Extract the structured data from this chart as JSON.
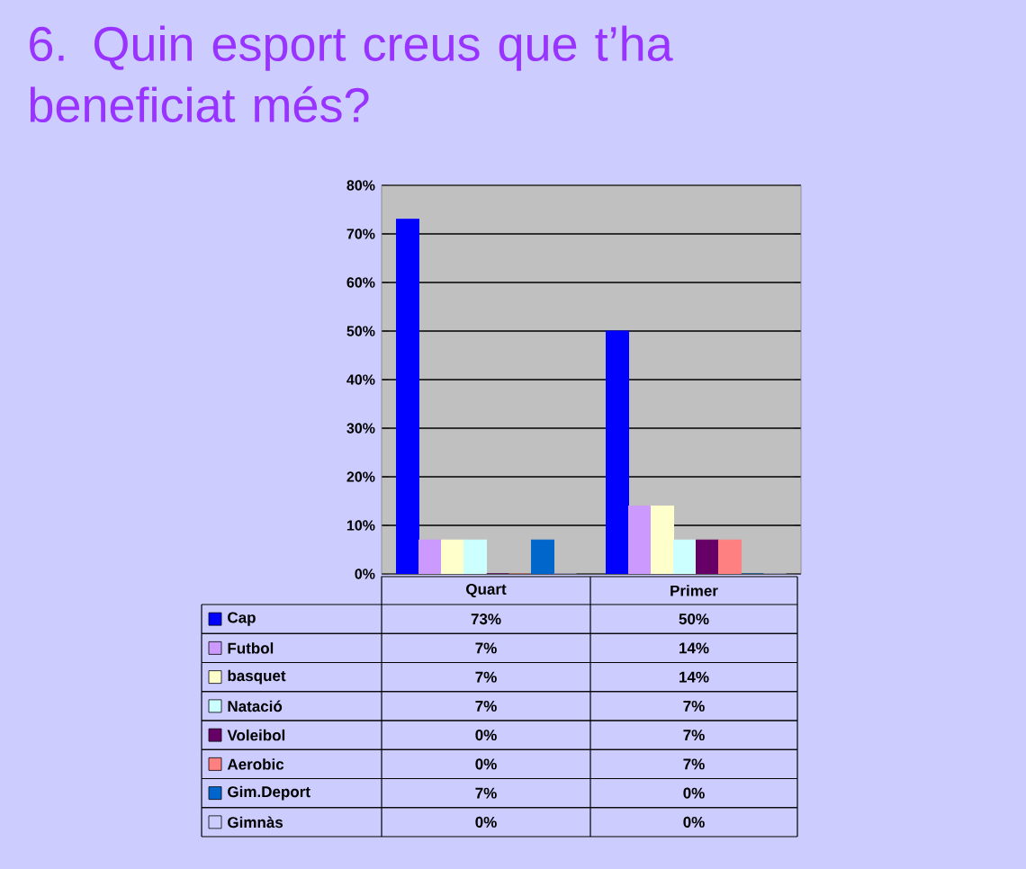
{
  "chart_data": {
    "type": "bar",
    "title": "6. Quin esport creus que t’ha beneficiat més?",
    "categories": [
      "Quart",
      "Primer"
    ],
    "series": [
      {
        "name": "Cap",
        "color": "#0000ff",
        "values": [
          73,
          50
        ],
        "value_labels": [
          "73%",
          "50%"
        ]
      },
      {
        "name": "Futbol",
        "color": "#cc99ff",
        "values": [
          7,
          14
        ],
        "value_labels": [
          "7%",
          "14%"
        ]
      },
      {
        "name": "basquet",
        "color": "#ffffcc",
        "values": [
          7,
          14
        ],
        "value_labels": [
          "7%",
          "14%"
        ]
      },
      {
        "name": "Natació",
        "color": "#ccffff",
        "values": [
          7,
          7
        ],
        "value_labels": [
          "7%",
          "7%"
        ]
      },
      {
        "name": "Voleibol",
        "color": "#660066",
        "values": [
          0,
          7
        ],
        "value_labels": [
          "0%",
          "7%"
        ]
      },
      {
        "name": "Aerobic",
        "color": "#ff8080",
        "values": [
          0,
          7
        ],
        "value_labels": [
          "0%",
          "7%"
        ]
      },
      {
        "name": "Gim.Deport",
        "color": "#0066cc",
        "values": [
          7,
          0
        ],
        "value_labels": [
          "7%",
          "0%"
        ]
      },
      {
        "name": "Gimnàs",
        "color": "#ccccff",
        "values": [
          0,
          0
        ],
        "value_labels": [
          "0%",
          "0%"
        ]
      }
    ],
    "ylim": [
      0,
      80
    ],
    "yticks": [
      {
        "value": 0,
        "label": "0%"
      },
      {
        "value": 10,
        "label": "10%"
      },
      {
        "value": 20,
        "label": "20%"
      },
      {
        "value": 30,
        "label": "30%"
      },
      {
        "value": 40,
        "label": "40%"
      },
      {
        "value": 50,
        "label": "50%"
      },
      {
        "value": 60,
        "label": "60%"
      },
      {
        "value": 70,
        "label": "70%"
      },
      {
        "value": 80,
        "label": "80%"
      }
    ],
    "grid": "y",
    "legend": "bottom"
  }
}
